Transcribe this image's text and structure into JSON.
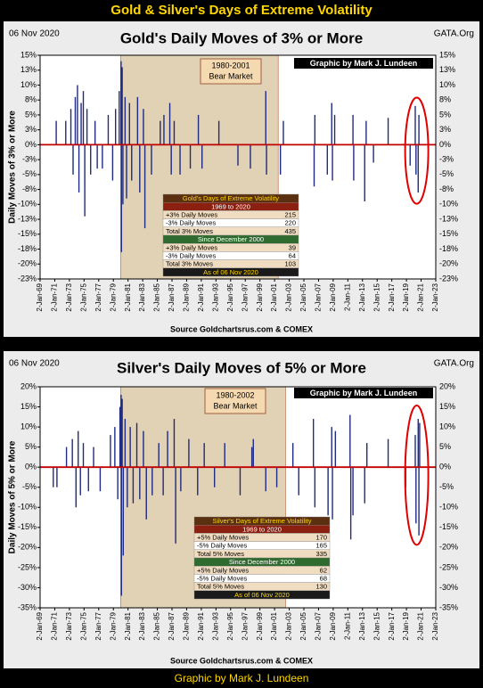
{
  "page_title": "Gold & Silver's Days of Extreme Volatility",
  "footer_credit": "Graphic by Mark J. Lundeen",
  "chart_data": [
    {
      "type": "bar",
      "title": "Gold's Daily Moves of 3% or More",
      "date_label": "06 Nov 2020",
      "site_label": "GATA.Org",
      "credit": "Graphic by Mark J. Lundeen",
      "y_label": "Daily Moves of 3% or More",
      "source": "Source Goldchartsrus.com & COMEX",
      "annotation": [
        "1980-2001",
        "Bear Market"
      ],
      "shade_x": [
        1980,
        2001.5
      ],
      "color": "#1f2a80",
      "zero_line_color": "#c00000",
      "x": [
        1971.2,
        1972.5,
        1973.2,
        1973.5,
        1973.8,
        1974.1,
        1974.3,
        1974.6,
        1974.9,
        1975.1,
        1975.4,
        1975.9,
        1976.5,
        1976.8,
        1977.5,
        1978.3,
        1978.9,
        1979.3,
        1979.8,
        1980.05,
        1980.1,
        1980.2,
        1980.3,
        1980.6,
        1980.8,
        1981.2,
        1981.5,
        1982.3,
        1982.6,
        1983.1,
        1983.3,
        1984.2,
        1985.4,
        1985.9,
        1986.7,
        1986.9,
        1987.3,
        1988.1,
        1989.5,
        1990.6,
        1991.1,
        1993.4,
        1996.0,
        1997.7,
        1999.8,
        1999.9,
        2001.8,
        2002.2,
        2006.4,
        2006.5,
        2008.2,
        2008.8,
        2008.9,
        2009.2,
        2011.7,
        2011.8,
        2013.3,
        2013.5,
        2014.5,
        2016.5,
        2019.5,
        2020.2,
        2020.3,
        2020.6,
        2020.7
      ],
      "values": [
        4,
        4,
        6,
        -5,
        8,
        10,
        -8,
        7,
        9,
        -12,
        6,
        -5,
        4,
        -4,
        -4,
        5,
        -6,
        6,
        9,
        14,
        -18,
        13,
        -10,
        8,
        -9,
        7,
        -6,
        8,
        -8,
        6,
        -14,
        -5,
        4,
        5,
        7,
        -5,
        4,
        -5,
        -4,
        5,
        -4,
        4,
        -3.5,
        -4,
        9,
        -5,
        -5,
        4,
        -7,
        5,
        -5,
        7,
        -6,
        5,
        5,
        -6,
        -9.5,
        4,
        -3,
        4.5,
        -3.5,
        6.5,
        -5,
        -8,
        5
      ],
      "xlim": [
        1969,
        2023
      ],
      "ylim": [
        -22.5,
        15
      ],
      "xticks": [
        {
          "value": 1969,
          "label": "2-Jan-69"
        },
        {
          "value": 1971,
          "label": "2-Jan-71"
        },
        {
          "value": 1973,
          "label": "2-Jan-73"
        },
        {
          "value": 1975,
          "label": "2-Jan-75"
        },
        {
          "value": 1977,
          "label": "2-Jan-77"
        },
        {
          "value": 1979,
          "label": "2-Jan-79"
        },
        {
          "value": 1981,
          "label": "2-Jan-81"
        },
        {
          "value": 1983,
          "label": "2-Jan-83"
        },
        {
          "value": 1985,
          "label": "2-Jan-85"
        },
        {
          "value": 1987,
          "label": "2-Jan-87"
        },
        {
          "value": 1989,
          "label": "2-Jan-89"
        },
        {
          "value": 1991,
          "label": "2-Jan-91"
        },
        {
          "value": 1993,
          "label": "2-Jan-93"
        },
        {
          "value": 1995,
          "label": "2-Jan-95"
        },
        {
          "value": 1997,
          "label": "2-Jan-97"
        },
        {
          "value": 1999,
          "label": "2-Jan-99"
        },
        {
          "value": 2001,
          "label": "2-Jan-01"
        },
        {
          "value": 2003,
          "label": "2-Jan-03"
        },
        {
          "value": 2005,
          "label": "2-Jan-05"
        },
        {
          "value": 2007,
          "label": "2-Jan-07"
        },
        {
          "value": 2009,
          "label": "2-Jan-09"
        },
        {
          "value": 2011,
          "label": "2-Jan-11"
        },
        {
          "value": 2013,
          "label": "2-Jan-13"
        },
        {
          "value": 2015,
          "label": "2-Jan-15"
        },
        {
          "value": 2017,
          "label": "2-Jan-17"
        },
        {
          "value": 2019,
          "label": "2-Jan-19"
        },
        {
          "value": 2021,
          "label": "2-Jan-21"
        },
        {
          "value": 2023,
          "label": "2-Jan-23"
        }
      ],
      "yticks": [
        {
          "value": 15,
          "label": "15%"
        },
        {
          "value": 12.5,
          "label": "13%"
        },
        {
          "value": 10,
          "label": "10%"
        },
        {
          "value": 7.5,
          "label": "8%"
        },
        {
          "value": 5,
          "label": "5%"
        },
        {
          "value": 2.5,
          "label": "3%"
        },
        {
          "value": 0,
          "label": "0%"
        },
        {
          "value": -2.5,
          "label": "-3%"
        },
        {
          "value": -5,
          "label": "-5%"
        },
        {
          "value": -7.5,
          "label": "-8%"
        },
        {
          "value": -10,
          "label": "-10%"
        },
        {
          "value": -12.5,
          "label": "-13%"
        },
        {
          "value": -15,
          "label": "-15%"
        },
        {
          "value": -17.5,
          "label": "-18%"
        },
        {
          "value": -20,
          "label": "-20%"
        },
        {
          "value": -22.5,
          "label": "-23%"
        }
      ],
      "table": {
        "title": "Gold's Days of Extreme Volatility",
        "sections": [
          {
            "heading": "1969 to 2020",
            "rows": [
              [
                "+3% Daily Moves",
                215
              ],
              [
                "-3% Daily Moves",
                220
              ],
              [
                "Total 3% Moves",
                435
              ]
            ]
          },
          {
            "heading": "Since December 2000",
            "rows": [
              [
                "+3% Daily Moves",
                39
              ],
              [
                "-3% Daily Moves",
                64
              ],
              [
                "Total 3% Moves",
                103
              ]
            ]
          }
        ],
        "footer": "As of 06 Nov 2020"
      }
    },
    {
      "type": "bar",
      "title": "Silver's Daily Moves of 5% or More",
      "date_label": "06 Nov 2020",
      "site_label": "GATA.Org",
      "credit": "Graphic by Mark J. Lundeen",
      "y_label": "Daily Moves of 5% or More",
      "source": "Source Goldchartsrus.com & COMEX",
      "annotation": [
        "1980-2002",
        "Bear Market"
      ],
      "shade_x": [
        1980,
        2002.5
      ],
      "color": "#1f2a80",
      "zero_line_color": "#c00000",
      "x": [
        1970.8,
        1971.3,
        1972.6,
        1973.4,
        1973.9,
        1974.2,
        1974.5,
        1974.9,
        1975.6,
        1976.3,
        1977.2,
        1978.6,
        1979.2,
        1979.6,
        1979.9,
        1980.05,
        1980.1,
        1980.2,
        1980.35,
        1980.6,
        1980.9,
        1981.3,
        1981.7,
        1982.2,
        1982.6,
        1983.1,
        1983.5,
        1984.3,
        1985.2,
        1985.8,
        1986.4,
        1987.3,
        1987.5,
        1988.2,
        1989.3,
        1990.5,
        1991.4,
        1992.8,
        1994.2,
        1996.3,
        1997.9,
        1998.1,
        1999.8,
        2001.3,
        2003.5,
        2004.3,
        2006.3,
        2006.5,
        2008.3,
        2008.8,
        2008.9,
        2009.3,
        2011.3,
        2011.4,
        2011.7,
        2013.3,
        2013.6,
        2016.5,
        2018.9,
        2020.2,
        2020.3,
        2020.6,
        2020.7,
        2020.8
      ],
      "values": [
        -5,
        -5,
        5,
        7,
        -10,
        9,
        -7,
        6,
        -6,
        5,
        -6,
        8,
        10,
        -8,
        15,
        18,
        -32,
        17,
        -22,
        12,
        -10,
        10,
        -9,
        11,
        -8,
        9,
        -13,
        -7,
        6,
        -7,
        9,
        12,
        -19,
        -6,
        7,
        -7,
        6,
        -5,
        6,
        -7,
        5,
        7,
        -6,
        -5,
        6,
        -7,
        12,
        -10,
        -12,
        10,
        -13,
        9,
        13,
        -18,
        -12,
        -9,
        6,
        7,
        -5,
        8,
        -14,
        12,
        -17,
        11
      ],
      "xlim": [
        1969,
        2023
      ],
      "ylim": [
        -35,
        20
      ],
      "xticks": [
        {
          "value": 1969,
          "label": "2-Jan-69"
        },
        {
          "value": 1971,
          "label": "2-Jan-71"
        },
        {
          "value": 1973,
          "label": "2-Jan-73"
        },
        {
          "value": 1975,
          "label": "2-Jan-75"
        },
        {
          "value": 1977,
          "label": "2-Jan-77"
        },
        {
          "value": 1979,
          "label": "2-Jan-79"
        },
        {
          "value": 1981,
          "label": "2-Jan-81"
        },
        {
          "value": 1983,
          "label": "2-Jan-83"
        },
        {
          "value": 1985,
          "label": "2-Jan-85"
        },
        {
          "value": 1987,
          "label": "2-Jan-87"
        },
        {
          "value": 1989,
          "label": "2-Jan-89"
        },
        {
          "value": 1991,
          "label": "2-Jan-91"
        },
        {
          "value": 1993,
          "label": "2-Jan-93"
        },
        {
          "value": 1995,
          "label": "2-Jan-95"
        },
        {
          "value": 1997,
          "label": "2-Jan-97"
        },
        {
          "value": 1999,
          "label": "2-Jan-99"
        },
        {
          "value": 2001,
          "label": "2-Jan-01"
        },
        {
          "value": 2003,
          "label": "2-Jan-03"
        },
        {
          "value": 2005,
          "label": "2-Jan-05"
        },
        {
          "value": 2007,
          "label": "2-Jan-07"
        },
        {
          "value": 2009,
          "label": "2-Jan-09"
        },
        {
          "value": 2011,
          "label": "2-Jan-11"
        },
        {
          "value": 2013,
          "label": "2-Jan-13"
        },
        {
          "value": 2015,
          "label": "2-Jan-15"
        },
        {
          "value": 2017,
          "label": "2-Jan-17"
        },
        {
          "value": 2019,
          "label": "2-Jan-19"
        },
        {
          "value": 2021,
          "label": "2-Jan-21"
        },
        {
          "value": 2023,
          "label": "2-Jan-23"
        }
      ],
      "yticks": [
        {
          "value": 20,
          "label": "20%"
        },
        {
          "value": 15,
          "label": "15%"
        },
        {
          "value": 10,
          "label": "10%"
        },
        {
          "value": 5,
          "label": "5%"
        },
        {
          "value": 0,
          "label": "0%"
        },
        {
          "value": -5,
          "label": "-5%"
        },
        {
          "value": -10,
          "label": "-10%"
        },
        {
          "value": -15,
          "label": "-15%"
        },
        {
          "value": -20,
          "label": "-20%"
        },
        {
          "value": -25,
          "label": "-25%"
        },
        {
          "value": -30,
          "label": "-30%"
        },
        {
          "value": -35,
          "label": "-35%"
        }
      ],
      "table": {
        "title": "Silver's Days of Extreme Volatility",
        "sections": [
          {
            "heading": "1969 to 2020",
            "rows": [
              [
                "+5% Daily Moves",
                170
              ],
              [
                "-5% Daily Moves",
                165
              ],
              [
                "Total 5% Moves",
                335
              ]
            ]
          },
          {
            "heading": "Since December 2000",
            "rows": [
              [
                "+5% Daily Moves",
                62
              ],
              [
                "-5% Daily Moves",
                68
              ],
              [
                "Total 5% Moves",
                130
              ]
            ]
          }
        ],
        "footer": "As of 06 Nov 2020"
      }
    }
  ]
}
